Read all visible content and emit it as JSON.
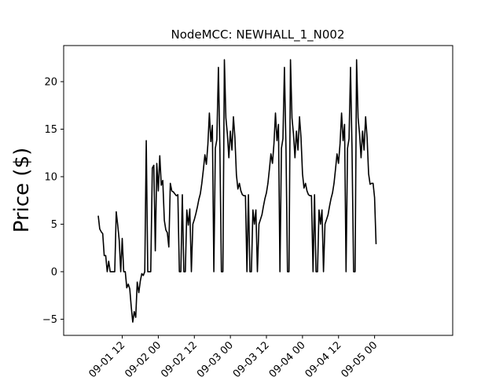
{
  "chart_data": {
    "type": "line",
    "title": "NodeMCC: NEWHALL_1_N002",
    "xlabel": "",
    "ylabel": "Price ($)",
    "x_unit": "hours since 2023-09-01 00:00 (hourly data)",
    "xlim": [
      -7.5,
      122
    ],
    "ylim": [
      -6.7,
      23.8
    ],
    "yticks": [
      -5,
      0,
      5,
      10,
      15,
      20
    ],
    "xticks": [
      {
        "value": 12,
        "label": "09-01 12"
      },
      {
        "value": 24,
        "label": "09-02 00"
      },
      {
        "value": 36,
        "label": "09-02 12"
      },
      {
        "value": 48,
        "label": "09-03 00"
      },
      {
        "value": 60,
        "label": "09-03 12"
      },
      {
        "value": 72,
        "label": "09-04 00"
      },
      {
        "value": 84,
        "label": "09-04 12"
      },
      {
        "value": 96,
        "label": "09-05 00"
      }
    ],
    "grid": false,
    "line_color": "#000000",
    "series": [
      {
        "name": "NEWHALL_1_N002",
        "points": [
          [
            4,
            5.9
          ],
          [
            4.5,
            4.5
          ],
          [
            5,
            4.2
          ],
          [
            5.5,
            4.0
          ],
          [
            6,
            1.7
          ],
          [
            6.5,
            1.7
          ],
          [
            7,
            0.0
          ],
          [
            7.5,
            1.1
          ],
          [
            8,
            0.0
          ],
          [
            8.5,
            0.0
          ],
          [
            9,
            0.0
          ],
          [
            9.5,
            0.0
          ],
          [
            10,
            6.3
          ],
          [
            10.5,
            4.9
          ],
          [
            11,
            3.3
          ],
          [
            11.5,
            0.0
          ],
          [
            12,
            3.5
          ],
          [
            12.5,
            0.0
          ],
          [
            13,
            0.0
          ],
          [
            13.5,
            -1.7
          ],
          [
            14,
            -1.3
          ],
          [
            14.5,
            -1.8
          ],
          [
            15,
            -3.7
          ],
          [
            15.5,
            -5.3
          ],
          [
            16,
            -4.2
          ],
          [
            16.5,
            -4.8
          ],
          [
            17,
            -1.1
          ],
          [
            17.5,
            -2.2
          ],
          [
            18,
            -1.0
          ],
          [
            18.5,
            -0.2
          ],
          [
            19,
            -0.4
          ],
          [
            19.5,
            0.0
          ],
          [
            20,
            13.8
          ],
          [
            20.5,
            0.0
          ],
          [
            21,
            0.0
          ],
          [
            21.5,
            0.0
          ],
          [
            22,
            10.9
          ],
          [
            22.5,
            11.2
          ],
          [
            23,
            2.2
          ],
          [
            23.5,
            11.4
          ],
          [
            24,
            8.5
          ],
          [
            24.5,
            12.2
          ],
          [
            25,
            9.1
          ],
          [
            25.5,
            9.6
          ],
          [
            26,
            5.4
          ],
          [
            26.5,
            4.4
          ],
          [
            27,
            4.1
          ],
          [
            27.5,
            2.6
          ],
          [
            28,
            9.3
          ],
          [
            28.5,
            8.5
          ],
          [
            29,
            8.4
          ],
          [
            29.5,
            8.2
          ],
          [
            30,
            8.0
          ],
          [
            30.5,
            8.1
          ],
          [
            31,
            0.0
          ],
          [
            31.5,
            0.0
          ],
          [
            32,
            8.1
          ],
          [
            32.5,
            0.0
          ],
          [
            33,
            0.0
          ],
          [
            33.5,
            6.5
          ],
          [
            34,
            4.9
          ],
          [
            34.5,
            6.6
          ],
          [
            35,
            0.0
          ],
          [
            35.5,
            5.0
          ],
          [
            36,
            5.5
          ],
          [
            36.5,
            6.1
          ],
          [
            37,
            6.8
          ],
          [
            37.5,
            7.6
          ],
          [
            38,
            8.2
          ],
          [
            38.5,
            9.3
          ],
          [
            39,
            10.7
          ],
          [
            39.5,
            12.3
          ],
          [
            40,
            11.3
          ],
          [
            40.5,
            13.4
          ],
          [
            41,
            16.7
          ],
          [
            41.5,
            13.7
          ],
          [
            42,
            15.4
          ],
          [
            42.5,
            0.0
          ],
          [
            43,
            13.0
          ],
          [
            43.5,
            13.9
          ],
          [
            44,
            21.5
          ],
          [
            44.5,
            12.8
          ],
          [
            45,
            0.0
          ],
          [
            45.5,
            0.0
          ],
          [
            46,
            22.3
          ],
          [
            46.5,
            16.2
          ],
          [
            47,
            14.5
          ],
          [
            47.5,
            12.0
          ],
          [
            48,
            14.8
          ],
          [
            48.5,
            12.8
          ],
          [
            49,
            16.3
          ],
          [
            49.5,
            14.1
          ],
          [
            50,
            10.2
          ],
          [
            50.5,
            8.7
          ],
          [
            51,
            9.3
          ],
          [
            51.5,
            8.5
          ],
          [
            52,
            8.1
          ],
          [
            52.5,
            8.0
          ],
          [
            53,
            8.0
          ],
          [
            53.5,
            0.0
          ],
          [
            54,
            8.1
          ],
          [
            54.5,
            0.0
          ],
          [
            55,
            0.0
          ],
          [
            55.5,
            6.5
          ],
          [
            56,
            5.0
          ],
          [
            56.5,
            6.5
          ],
          [
            57,
            0.0
          ],
          [
            57.5,
            5.0
          ],
          [
            58,
            5.5
          ],
          [
            58.5,
            6.0
          ],
          [
            59,
            6.9
          ],
          [
            59.5,
            7.7
          ],
          [
            60,
            8.3
          ],
          [
            60.5,
            9.3
          ],
          [
            61,
            10.8
          ],
          [
            61.5,
            12.4
          ],
          [
            62,
            11.4
          ],
          [
            62.5,
            13.5
          ],
          [
            63,
            16.7
          ],
          [
            63.5,
            13.8
          ],
          [
            64,
            15.5
          ],
          [
            64.5,
            0.0
          ],
          [
            65,
            13.0
          ],
          [
            65.5,
            14.0
          ],
          [
            66,
            21.5
          ],
          [
            66.5,
            12.9
          ],
          [
            67,
            0.0
          ],
          [
            67.5,
            0.0
          ],
          [
            68,
            22.3
          ],
          [
            68.5,
            16.2
          ],
          [
            69,
            14.5
          ],
          [
            69.5,
            12.0
          ],
          [
            70,
            14.8
          ],
          [
            70.5,
            12.8
          ],
          [
            71,
            16.3
          ],
          [
            71.5,
            14.1
          ],
          [
            72,
            10.3
          ],
          [
            72.5,
            8.8
          ],
          [
            73,
            9.3
          ],
          [
            73.5,
            8.5
          ],
          [
            74,
            8.1
          ],
          [
            74.5,
            8.0
          ],
          [
            75,
            8.0
          ],
          [
            75.5,
            0.0
          ],
          [
            76,
            8.1
          ],
          [
            76.5,
            0.0
          ],
          [
            77,
            0.0
          ],
          [
            77.5,
            6.5
          ],
          [
            78,
            5.0
          ],
          [
            78.5,
            6.5
          ],
          [
            79,
            0.0
          ],
          [
            79.5,
            5.0
          ],
          [
            80,
            5.5
          ],
          [
            80.5,
            6.0
          ],
          [
            81,
            6.9
          ],
          [
            81.5,
            7.7
          ],
          [
            82,
            8.3
          ],
          [
            82.5,
            9.3
          ],
          [
            83,
            10.8
          ],
          [
            83.5,
            12.4
          ],
          [
            84,
            11.4
          ],
          [
            84.5,
            13.5
          ],
          [
            85,
            16.7
          ],
          [
            85.5,
            13.8
          ],
          [
            86,
            15.5
          ],
          [
            86.5,
            0.0
          ],
          [
            87,
            13.0
          ],
          [
            87.5,
            14.0
          ],
          [
            88,
            21.5
          ],
          [
            88.5,
            12.9
          ],
          [
            89,
            0.0
          ],
          [
            89.5,
            0.0
          ],
          [
            90,
            22.3
          ],
          [
            90.5,
            16.2
          ],
          [
            91,
            14.5
          ],
          [
            91.5,
            12.0
          ],
          [
            92,
            14.8
          ],
          [
            92.5,
            12.8
          ],
          [
            93,
            16.3
          ],
          [
            93.5,
            14.1
          ],
          [
            94,
            10.3
          ],
          [
            94.5,
            9.2
          ],
          [
            95,
            9.3
          ],
          [
            95.5,
            9.3
          ],
          [
            96,
            7.8
          ],
          [
            96.5,
            2.9
          ]
        ]
      }
    ]
  }
}
